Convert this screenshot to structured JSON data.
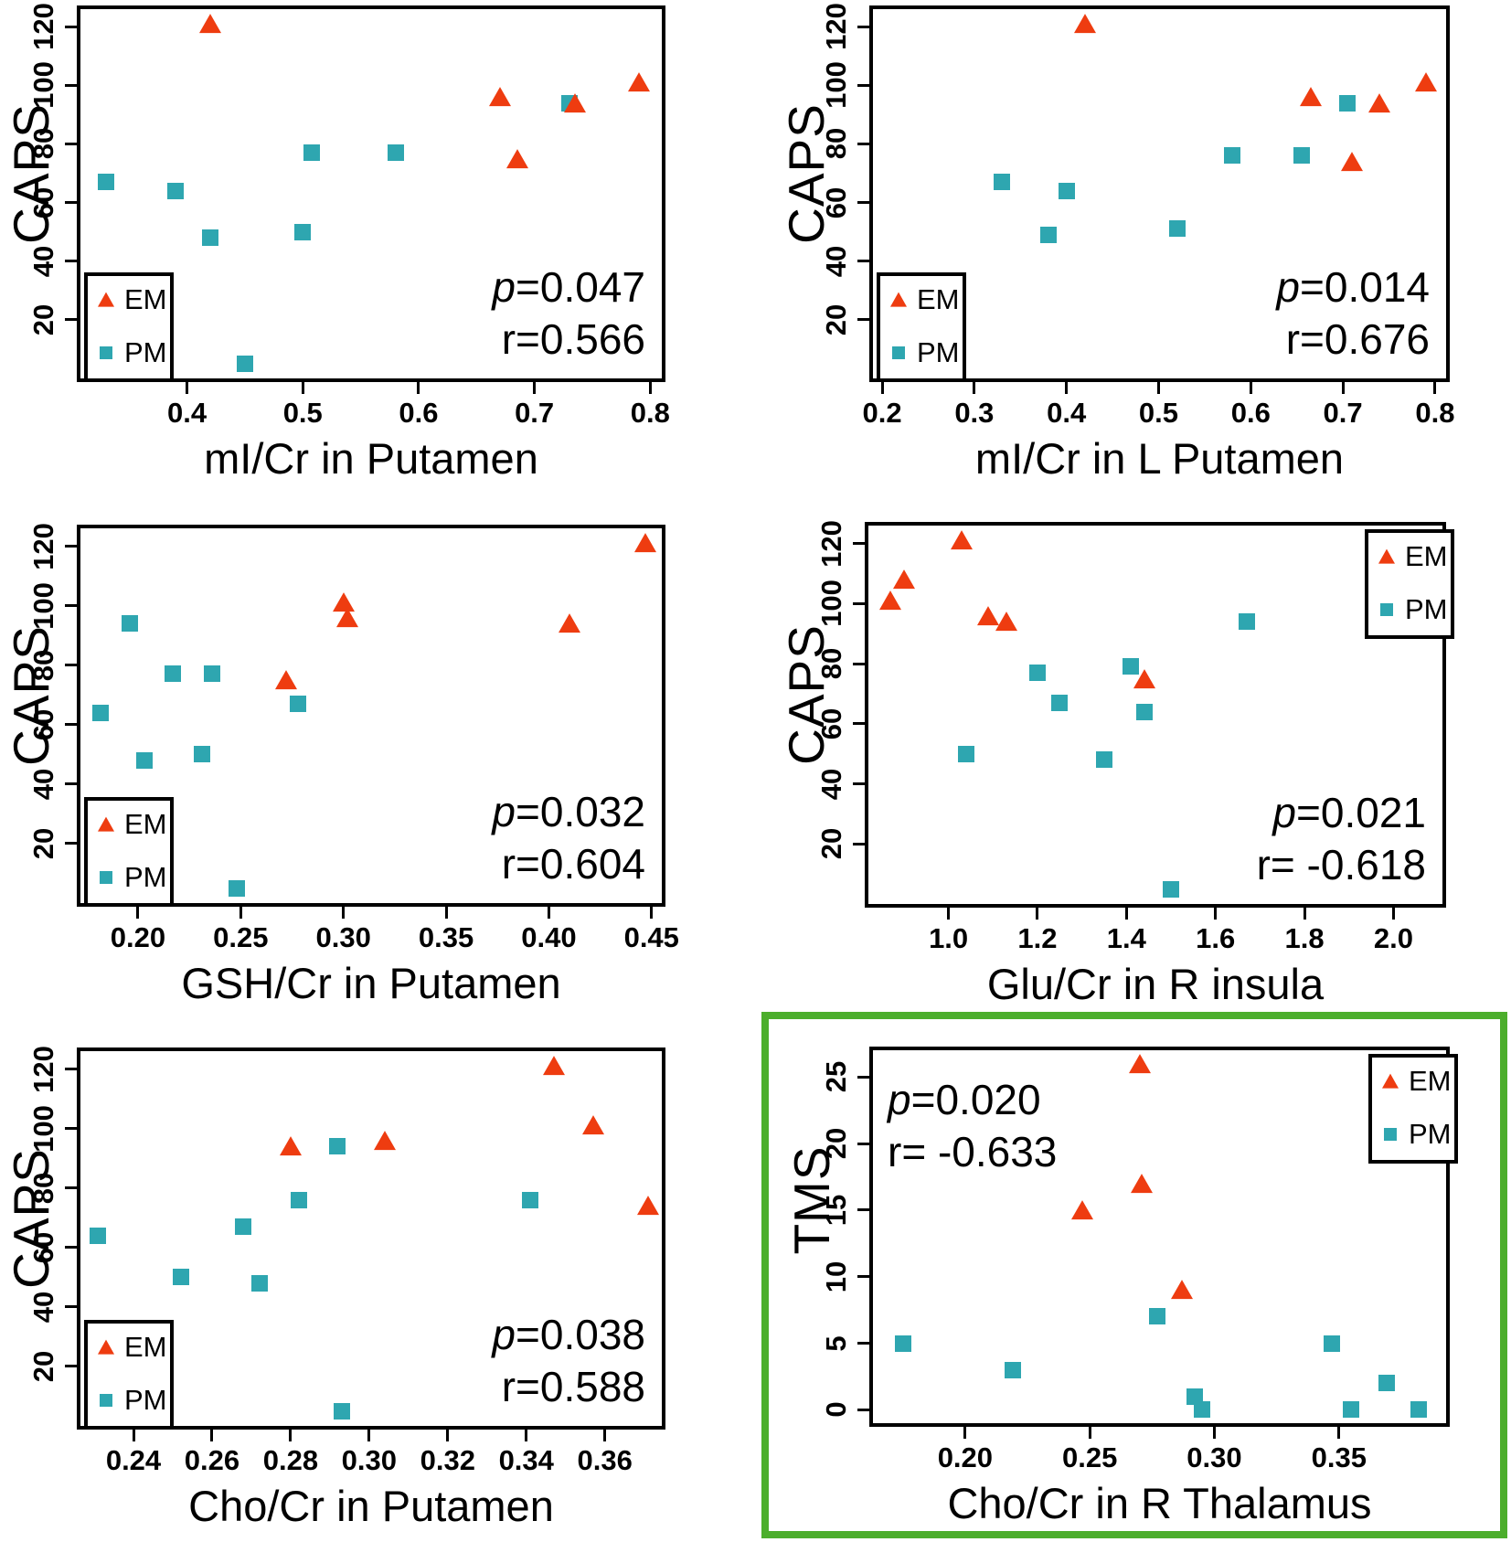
{
  "figure": {
    "em_color": "#ee3c10",
    "pm_color": "#2ea6b0",
    "highlight_color": "#4cae2c",
    "legend": {
      "em_label": "EM",
      "pm_label": "PM"
    }
  },
  "chart_data": [
    {
      "type": "scatter",
      "xlabel": "mI/Cr in Putamen",
      "ylabel": "CAPS",
      "xlim": [
        0.308,
        0.81
      ],
      "ylim": [
        0,
        126
      ],
      "xticks": [
        "0.4",
        "0.5",
        "0.6",
        "0.7",
        "0.8"
      ],
      "yticks": [
        "20",
        "40",
        "60",
        "80",
        "100",
        "120"
      ],
      "stats": {
        "p": "p=0.047",
        "r": "r=0.566"
      },
      "stats_position": "bottom-right",
      "legend_position": "bottom-left",
      "grid": false,
      "highlighted": false,
      "series": [
        {
          "name": "EM",
          "marker": "triangle",
          "points": [
            [
              0.42,
              121
            ],
            [
              0.67,
              96
            ],
            [
              0.685,
              75
            ],
            [
              0.735,
              94
            ],
            [
              0.79,
              101
            ]
          ]
        },
        {
          "name": "PM",
          "marker": "square",
          "points": [
            [
              0.33,
              67
            ],
            [
              0.39,
              64
            ],
            [
              0.42,
              48
            ],
            [
              0.45,
              5
            ],
            [
              0.5,
              50
            ],
            [
              0.508,
              77
            ],
            [
              0.58,
              77
            ],
            [
              0.73,
              94
            ]
          ]
        }
      ]
    },
    {
      "type": "scatter",
      "xlabel": "mI/Cr in L Putamen",
      "ylabel": "CAPS",
      "xlim": [
        0.19,
        0.812
      ],
      "ylim": [
        0,
        126
      ],
      "xticks": [
        "0.2",
        "0.3",
        "0.4",
        "0.5",
        "0.6",
        "0.7",
        "0.8"
      ],
      "yticks": [
        "20",
        "40",
        "60",
        "80",
        "100",
        "120"
      ],
      "stats": {
        "p": "p=0.014",
        "r": "r=0.676"
      },
      "stats_position": "bottom-right",
      "legend_position": "bottom-left",
      "grid": false,
      "highlighted": false,
      "series": [
        {
          "name": "EM",
          "marker": "triangle",
          "points": [
            [
              0.42,
              121
            ],
            [
              0.665,
              96
            ],
            [
              0.71,
              74
            ],
            [
              0.74,
              94
            ],
            [
              0.79,
              101
            ]
          ]
        },
        {
          "name": "PM",
          "marker": "square",
          "points": [
            [
              0.33,
              67
            ],
            [
              0.38,
              49
            ],
            [
              0.4,
              64
            ],
            [
              0.52,
              51
            ],
            [
              0.58,
              76
            ],
            [
              0.655,
              76
            ],
            [
              0.705,
              94
            ]
          ]
        }
      ]
    },
    {
      "type": "scatter",
      "xlabel": "GSH/Cr in Putamen",
      "ylabel": "CAPS",
      "xlim": [
        0.172,
        0.455
      ],
      "ylim": [
        0,
        126
      ],
      "xticks": [
        "0.20",
        "0.25",
        "0.30",
        "0.35",
        "0.40",
        "0.45"
      ],
      "yticks": [
        "20",
        "40",
        "60",
        "80",
        "100",
        "120"
      ],
      "stats": {
        "p": "p=0.032",
        "r": "r=0.604"
      },
      "stats_position": "bottom-right",
      "legend_position": "bottom-left",
      "grid": false,
      "highlighted": false,
      "series": [
        {
          "name": "EM",
          "marker": "triangle",
          "points": [
            [
              0.272,
              75
            ],
            [
              0.3,
              101
            ],
            [
              0.302,
              96
            ],
            [
              0.41,
              94
            ],
            [
              0.447,
              121
            ]
          ]
        },
        {
          "name": "PM",
          "marker": "square",
          "points": [
            [
              0.182,
              64
            ],
            [
              0.196,
              94
            ],
            [
              0.203,
              48
            ],
            [
              0.217,
              77
            ],
            [
              0.231,
              50
            ],
            [
              0.236,
              77
            ],
            [
              0.248,
              5
            ],
            [
              0.278,
              67
            ]
          ]
        }
      ]
    },
    {
      "type": "scatter",
      "xlabel": "Glu/Cr in R insula",
      "ylabel": "CAPS",
      "xlim": [
        0.82,
        2.11
      ],
      "ylim": [
        0,
        126
      ],
      "xticks": [
        "1.0",
        "1.2",
        "1.4",
        "1.6",
        "1.8",
        "2.0"
      ],
      "yticks": [
        "20",
        "40",
        "60",
        "80",
        "100",
        "120"
      ],
      "stats": {
        "p": "p=0.021",
        "r": "r= -0.618"
      },
      "stats_position": "bottom-right",
      "legend_position": "top-right",
      "grid": false,
      "highlighted": false,
      "series": [
        {
          "name": "EM",
          "marker": "triangle",
          "points": [
            [
              0.87,
              101
            ],
            [
              0.9,
              108
            ],
            [
              1.03,
              121
            ],
            [
              1.09,
              96
            ],
            [
              1.13,
              94
            ],
            [
              1.44,
              75
            ]
          ]
        },
        {
          "name": "PM",
          "marker": "square",
          "points": [
            [
              1.04,
              50
            ],
            [
              1.2,
              77
            ],
            [
              1.25,
              67
            ],
            [
              1.35,
              48
            ],
            [
              1.41,
              79
            ],
            [
              1.44,
              64
            ],
            [
              1.5,
              5
            ],
            [
              1.67,
              94
            ]
          ]
        }
      ]
    },
    {
      "type": "scatter",
      "xlabel": "Cho/Cr in Putamen",
      "ylabel": "CAPS",
      "xlim": [
        0.2265,
        0.3745
      ],
      "ylim": [
        0,
        126
      ],
      "xticks": [
        "0.24",
        "0.26",
        "0.28",
        "0.30",
        "0.32",
        "0.34",
        "0.36"
      ],
      "yticks": [
        "20",
        "40",
        "60",
        "80",
        "100",
        "120"
      ],
      "stats": {
        "p": "p=0.038",
        "r": "r=0.588"
      },
      "stats_position": "bottom-right",
      "legend_position": "bottom-left",
      "grid": false,
      "highlighted": false,
      "series": [
        {
          "name": "EM",
          "marker": "triangle",
          "points": [
            [
              0.28,
              94
            ],
            [
              0.304,
              96
            ],
            [
              0.347,
              121
            ],
            [
              0.357,
              101
            ],
            [
              0.371,
              74
            ]
          ]
        },
        {
          "name": "PM",
          "marker": "square",
          "points": [
            [
              0.231,
              64
            ],
            [
              0.252,
              50
            ],
            [
              0.268,
              67
            ],
            [
              0.272,
              48
            ],
            [
              0.282,
              76
            ],
            [
              0.292,
              94
            ],
            [
              0.293,
              5
            ],
            [
              0.341,
              76
            ]
          ]
        }
      ]
    },
    {
      "type": "scatter",
      "xlabel": "Cho/Cr in R Thalamus",
      "ylabel": "TMS",
      "xlim": [
        0.163,
        0.393
      ],
      "ylim": [
        -1,
        27
      ],
      "xticks": [
        "0.20",
        "0.25",
        "0.30",
        "0.35"
      ],
      "yticks": [
        "0",
        "5",
        "10",
        "15",
        "20",
        "25"
      ],
      "stats": {
        "p": "p=0.020",
        "r": "r= -0.633"
      },
      "stats_position": "top-left",
      "legend_position": "top-right",
      "grid": false,
      "highlighted": true,
      "series": [
        {
          "name": "EM",
          "marker": "triangle",
          "points": [
            [
              0.247,
              15
            ],
            [
              0.27,
              26
            ],
            [
              0.271,
              17
            ],
            [
              0.287,
              9
            ]
          ]
        },
        {
          "name": "PM",
          "marker": "square",
          "points": [
            [
              0.175,
              5
            ],
            [
              0.219,
              3
            ],
            [
              0.277,
              7
            ],
            [
              0.292,
              1
            ],
            [
              0.295,
              0
            ],
            [
              0.347,
              5
            ],
            [
              0.355,
              0
            ],
            [
              0.369,
              2
            ],
            [
              0.382,
              0
            ]
          ]
        }
      ]
    }
  ]
}
